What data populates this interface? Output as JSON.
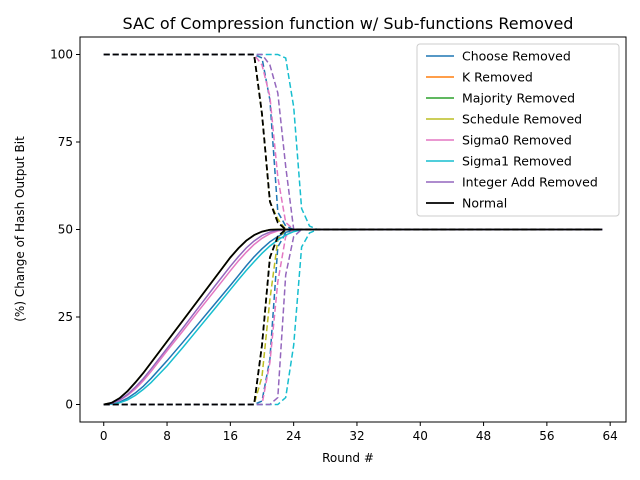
{
  "chart_data": {
    "type": "line",
    "title": "SAC of Compression function w/ Sub-functions Removed",
    "xlabel": "Round #",
    "ylabel": "(%) Change of Hash Output Bit",
    "xlim": [
      -3,
      66
    ],
    "ylim": [
      -5,
      105
    ],
    "xticks": [
      0,
      8,
      16,
      24,
      32,
      40,
      48,
      56,
      64
    ],
    "yticks": [
      0,
      25,
      50,
      75,
      100
    ],
    "grid": false,
    "legend_position": "top-right",
    "series": [
      {
        "name": "Choose Removed",
        "color": "#1f77b4",
        "solid": [
          [
            0,
            0
          ],
          [
            1,
            0.2
          ],
          [
            2,
            0.7
          ],
          [
            3,
            1.8
          ],
          [
            4,
            3.3
          ],
          [
            5,
            5.2
          ],
          [
            6,
            7.5
          ],
          [
            8,
            12.5
          ],
          [
            10,
            17.8
          ],
          [
            12,
            23.2
          ],
          [
            14,
            28.6
          ],
          [
            16,
            34
          ],
          [
            17,
            36.8
          ],
          [
            18,
            39.6
          ],
          [
            19,
            42.2
          ],
          [
            20,
            44.5
          ],
          [
            21,
            46.5
          ],
          [
            22,
            48
          ],
          [
            23,
            49.2
          ],
          [
            24,
            49.8
          ],
          [
            25,
            50
          ],
          [
            63,
            50
          ]
        ],
        "upper": [
          [
            0,
            100
          ],
          [
            18,
            100
          ],
          [
            19,
            100
          ],
          [
            20,
            99
          ],
          [
            21,
            87
          ],
          [
            22,
            55
          ],
          [
            23,
            51
          ],
          [
            24,
            50
          ],
          [
            63,
            50
          ]
        ],
        "lower": [
          [
            0,
            0
          ],
          [
            19,
            0
          ],
          [
            20,
            1
          ],
          [
            21,
            13
          ],
          [
            22,
            45
          ],
          [
            23,
            49
          ],
          [
            24,
            50
          ],
          [
            63,
            50
          ]
        ]
      },
      {
        "name": "K Removed",
        "color": "#ff7f0e",
        "solid": [
          [
            0,
            0
          ],
          [
            1,
            0.5
          ],
          [
            2,
            1.8
          ],
          [
            3,
            3.8
          ],
          [
            4,
            6.3
          ],
          [
            5,
            9
          ],
          [
            6,
            12
          ],
          [
            8,
            18
          ],
          [
            10,
            24
          ],
          [
            12,
            30
          ],
          [
            14,
            36
          ],
          [
            15,
            39
          ],
          [
            16,
            42
          ],
          [
            17,
            44.6
          ],
          [
            18,
            46.8
          ],
          [
            19,
            48.4
          ],
          [
            20,
            49.4
          ],
          [
            21,
            49.9
          ],
          [
            22,
            50
          ],
          [
            63,
            50
          ]
        ],
        "upper": [
          [
            0,
            100
          ],
          [
            19,
            100
          ],
          [
            20,
            83
          ],
          [
            21,
            58
          ],
          [
            22,
            52
          ],
          [
            23,
            50
          ],
          [
            63,
            50
          ]
        ],
        "lower": [
          [
            0,
            0
          ],
          [
            19,
            0
          ],
          [
            20,
            17
          ],
          [
            21,
            42
          ],
          [
            22,
            48
          ],
          [
            23,
            50
          ],
          [
            63,
            50
          ]
        ]
      },
      {
        "name": "Majority Removed",
        "color": "#2ca02c",
        "solid": [
          [
            0,
            0
          ],
          [
            1,
            0.5
          ],
          [
            2,
            1.8
          ],
          [
            3,
            3.8
          ],
          [
            4,
            6.3
          ],
          [
            5,
            9
          ],
          [
            6,
            12
          ],
          [
            8,
            18
          ],
          [
            10,
            24
          ],
          [
            12,
            30
          ],
          [
            14,
            36
          ],
          [
            15,
            39
          ],
          [
            16,
            42
          ],
          [
            17,
            44.6
          ],
          [
            18,
            46.8
          ],
          [
            19,
            48.4
          ],
          [
            20,
            49.4
          ],
          [
            21,
            49.9
          ],
          [
            22,
            50
          ],
          [
            63,
            50
          ]
        ],
        "upper": [
          [
            0,
            100
          ],
          [
            19,
            100
          ],
          [
            20,
            83
          ],
          [
            21,
            58
          ],
          [
            22,
            52
          ],
          [
            23,
            50
          ],
          [
            63,
            50
          ]
        ],
        "lower": [
          [
            0,
            0
          ],
          [
            19,
            0
          ],
          [
            20,
            17
          ],
          [
            21,
            42
          ],
          [
            22,
            48
          ],
          [
            23,
            50
          ],
          [
            63,
            50
          ]
        ]
      },
      {
        "name": "Schedule Removed",
        "color": "#bcbd22",
        "solid": [
          [
            0,
            0
          ],
          [
            1,
            0.5
          ],
          [
            2,
            1.8
          ],
          [
            3,
            3.8
          ],
          [
            4,
            6.3
          ],
          [
            5,
            9
          ],
          [
            6,
            12
          ],
          [
            8,
            18
          ],
          [
            10,
            24
          ],
          [
            12,
            30
          ],
          [
            14,
            36
          ],
          [
            15,
            39
          ],
          [
            16,
            42
          ],
          [
            17,
            44.6
          ],
          [
            18,
            46.8
          ],
          [
            19,
            48.4
          ],
          [
            20,
            49.4
          ],
          [
            21,
            49.9
          ],
          [
            22,
            50
          ],
          [
            63,
            50
          ]
        ],
        "upper": [
          [
            0,
            100
          ],
          [
            19,
            100
          ],
          [
            20,
            83
          ],
          [
            21,
            58
          ],
          [
            22,
            53
          ],
          [
            23,
            50
          ],
          [
            63,
            50
          ]
        ],
        "lower": [
          [
            0,
            0
          ],
          [
            19,
            0
          ],
          [
            20,
            8
          ],
          [
            21,
            30
          ],
          [
            22,
            47
          ],
          [
            23,
            50
          ],
          [
            63,
            50
          ]
        ]
      },
      {
        "name": "Sigma0 Removed",
        "color": "#e377c2",
        "solid": [
          [
            0,
            0
          ],
          [
            1,
            0.3
          ],
          [
            2,
            1.2
          ],
          [
            3,
            2.6
          ],
          [
            4,
            4.5
          ],
          [
            5,
            6.8
          ],
          [
            6,
            9.5
          ],
          [
            8,
            15.3
          ],
          [
            10,
            21
          ],
          [
            12,
            26.8
          ],
          [
            14,
            32.5
          ],
          [
            16,
            38.2
          ],
          [
            17,
            41
          ],
          [
            18,
            43.5
          ],
          [
            19,
            45.7
          ],
          [
            20,
            47.5
          ],
          [
            21,
            48.8
          ],
          [
            22,
            49.6
          ],
          [
            23,
            50
          ],
          [
            63,
            50
          ]
        ],
        "upper": [
          [
            0,
            100
          ],
          [
            19,
            100
          ],
          [
            20,
            97
          ],
          [
            21,
            88
          ],
          [
            22,
            65
          ],
          [
            23,
            52
          ],
          [
            24,
            50
          ],
          [
            63,
            50
          ]
        ],
        "lower": [
          [
            0,
            0
          ],
          [
            20,
            0
          ],
          [
            21,
            12
          ],
          [
            22,
            35
          ],
          [
            23,
            48
          ],
          [
            24,
            50
          ],
          [
            63,
            50
          ]
        ]
      },
      {
        "name": "Sigma1 Removed",
        "color": "#17becf",
        "solid": [
          [
            0,
            0
          ],
          [
            1,
            0.1
          ],
          [
            2,
            0.5
          ],
          [
            3,
            1.3
          ],
          [
            4,
            2.6
          ],
          [
            5,
            4.3
          ],
          [
            6,
            6.3
          ],
          [
            8,
            11
          ],
          [
            10,
            16.3
          ],
          [
            12,
            21.8
          ],
          [
            14,
            27.3
          ],
          [
            16,
            32.8
          ],
          [
            17,
            35.6
          ],
          [
            18,
            38.3
          ],
          [
            19,
            40.8
          ],
          [
            20,
            43.2
          ],
          [
            21,
            45.3
          ],
          [
            22,
            47
          ],
          [
            23,
            48.4
          ],
          [
            24,
            49.4
          ],
          [
            25,
            49.9
          ],
          [
            26,
            50
          ],
          [
            63,
            50
          ]
        ],
        "upper": [
          [
            0,
            100
          ],
          [
            22,
            100
          ],
          [
            23,
            99
          ],
          [
            24,
            85
          ],
          [
            25,
            56
          ],
          [
            26,
            51
          ],
          [
            27,
            50
          ],
          [
            63,
            50
          ]
        ],
        "lower": [
          [
            0,
            0
          ],
          [
            22,
            0
          ],
          [
            23,
            2
          ],
          [
            24,
            17
          ],
          [
            25,
            45
          ],
          [
            26,
            49
          ],
          [
            27,
            50
          ],
          [
            63,
            50
          ]
        ]
      },
      {
        "name": "Integer Add Removed",
        "color": "#9467bd",
        "solid": [
          [
            0,
            0
          ],
          [
            1,
            0.3
          ],
          [
            2,
            1.3
          ],
          [
            3,
            2.9
          ],
          [
            4,
            5
          ],
          [
            5,
            7.4
          ],
          [
            6,
            10.2
          ],
          [
            8,
            16
          ],
          [
            10,
            21.9
          ],
          [
            12,
            27.8
          ],
          [
            14,
            33.7
          ],
          [
            16,
            39.5
          ],
          [
            17,
            42.2
          ],
          [
            18,
            44.7
          ],
          [
            19,
            46.7
          ],
          [
            20,
            48.3
          ],
          [
            21,
            49.3
          ],
          [
            22,
            49.8
          ],
          [
            23,
            50
          ],
          [
            63,
            50
          ]
        ],
        "upper": [
          [
            0,
            100
          ],
          [
            20,
            100
          ],
          [
            21,
            97
          ],
          [
            22,
            89
          ],
          [
            23,
            68
          ],
          [
            24,
            50
          ],
          [
            63,
            50
          ]
        ],
        "lower": [
          [
            0,
            0
          ],
          [
            21,
            0
          ],
          [
            22,
            2
          ],
          [
            23,
            37
          ],
          [
            24,
            48
          ],
          [
            25,
            50
          ],
          [
            63,
            50
          ]
        ]
      },
      {
        "name": "Normal",
        "color": "#000000",
        "solid": [
          [
            0,
            0
          ],
          [
            1,
            0.5
          ],
          [
            2,
            1.8
          ],
          [
            3,
            3.8
          ],
          [
            4,
            6.3
          ],
          [
            5,
            9
          ],
          [
            6,
            12
          ],
          [
            8,
            18
          ],
          [
            10,
            24
          ],
          [
            12,
            30
          ],
          [
            14,
            36
          ],
          [
            15,
            39
          ],
          [
            16,
            42
          ],
          [
            17,
            44.6
          ],
          [
            18,
            46.8
          ],
          [
            19,
            48.4
          ],
          [
            20,
            49.4
          ],
          [
            21,
            49.9
          ],
          [
            22,
            50
          ],
          [
            63,
            50
          ]
        ],
        "upper": [
          [
            0,
            100
          ],
          [
            19,
            100
          ],
          [
            20,
            83
          ],
          [
            21,
            58
          ],
          [
            22,
            52
          ],
          [
            23,
            50
          ],
          [
            63,
            50
          ]
        ],
        "lower": [
          [
            0,
            0
          ],
          [
            19,
            0
          ],
          [
            20,
            17
          ],
          [
            21,
            42
          ],
          [
            22,
            48
          ],
          [
            23,
            50
          ],
          [
            63,
            50
          ]
        ]
      }
    ]
  }
}
